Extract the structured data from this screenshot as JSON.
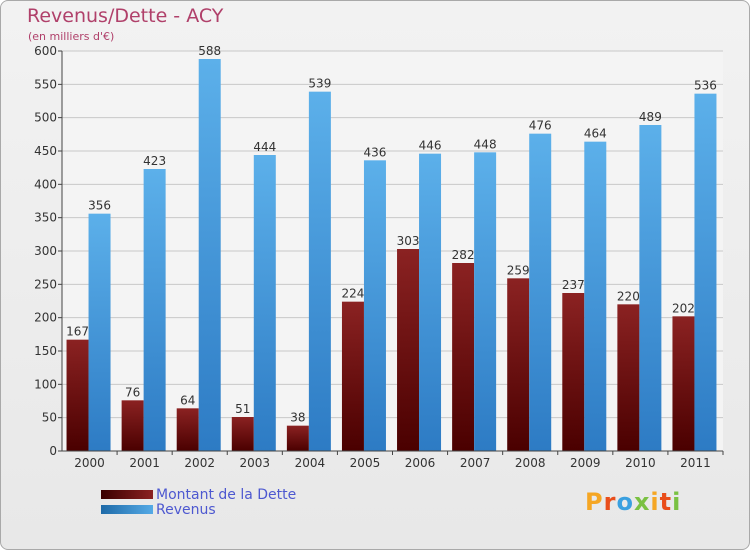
{
  "header": {
    "title": "Revenus/Dette - ACY",
    "subtitle": "(en milliers d'€)"
  },
  "legend": {
    "debt_label": "Montant de la Dette",
    "revenue_label": "Revenus"
  },
  "logo": {
    "text": "Proxiti",
    "colors": [
      "#f5a623",
      "#e94e1b",
      "#3aa0e0",
      "#7ac142",
      "#f5a623",
      "#e94e1b",
      "#7ac142"
    ]
  },
  "colors": {
    "debt_top": "#8b2222",
    "debt_bottom": "#4a0000",
    "revenue_top": "#5cb0ea",
    "revenue_bottom": "#2d7bc4",
    "title": "#b0406a"
  },
  "chart_data": {
    "type": "bar",
    "title": "Revenus/Dette - ACY",
    "subtitle": "(en milliers d'€)",
    "xlabel": "",
    "ylabel": "",
    "ylim": [
      0,
      600
    ],
    "yticks": [
      0,
      50,
      100,
      150,
      200,
      250,
      300,
      350,
      400,
      450,
      500,
      550,
      600
    ],
    "grid": true,
    "legend_position": "bottom-left",
    "categories": [
      "2000",
      "2001",
      "2002",
      "2003",
      "2004",
      "2005",
      "2006",
      "2007",
      "2008",
      "2009",
      "2010",
      "2011"
    ],
    "series": [
      {
        "name": "Montant de la Dette",
        "values": [
          167,
          76,
          64,
          51,
          38,
          224,
          303,
          282,
          259,
          237,
          220,
          202
        ]
      },
      {
        "name": "Revenus",
        "values": [
          356,
          423,
          588,
          444,
          539,
          436,
          446,
          448,
          476,
          464,
          489,
          536
        ]
      }
    ]
  }
}
